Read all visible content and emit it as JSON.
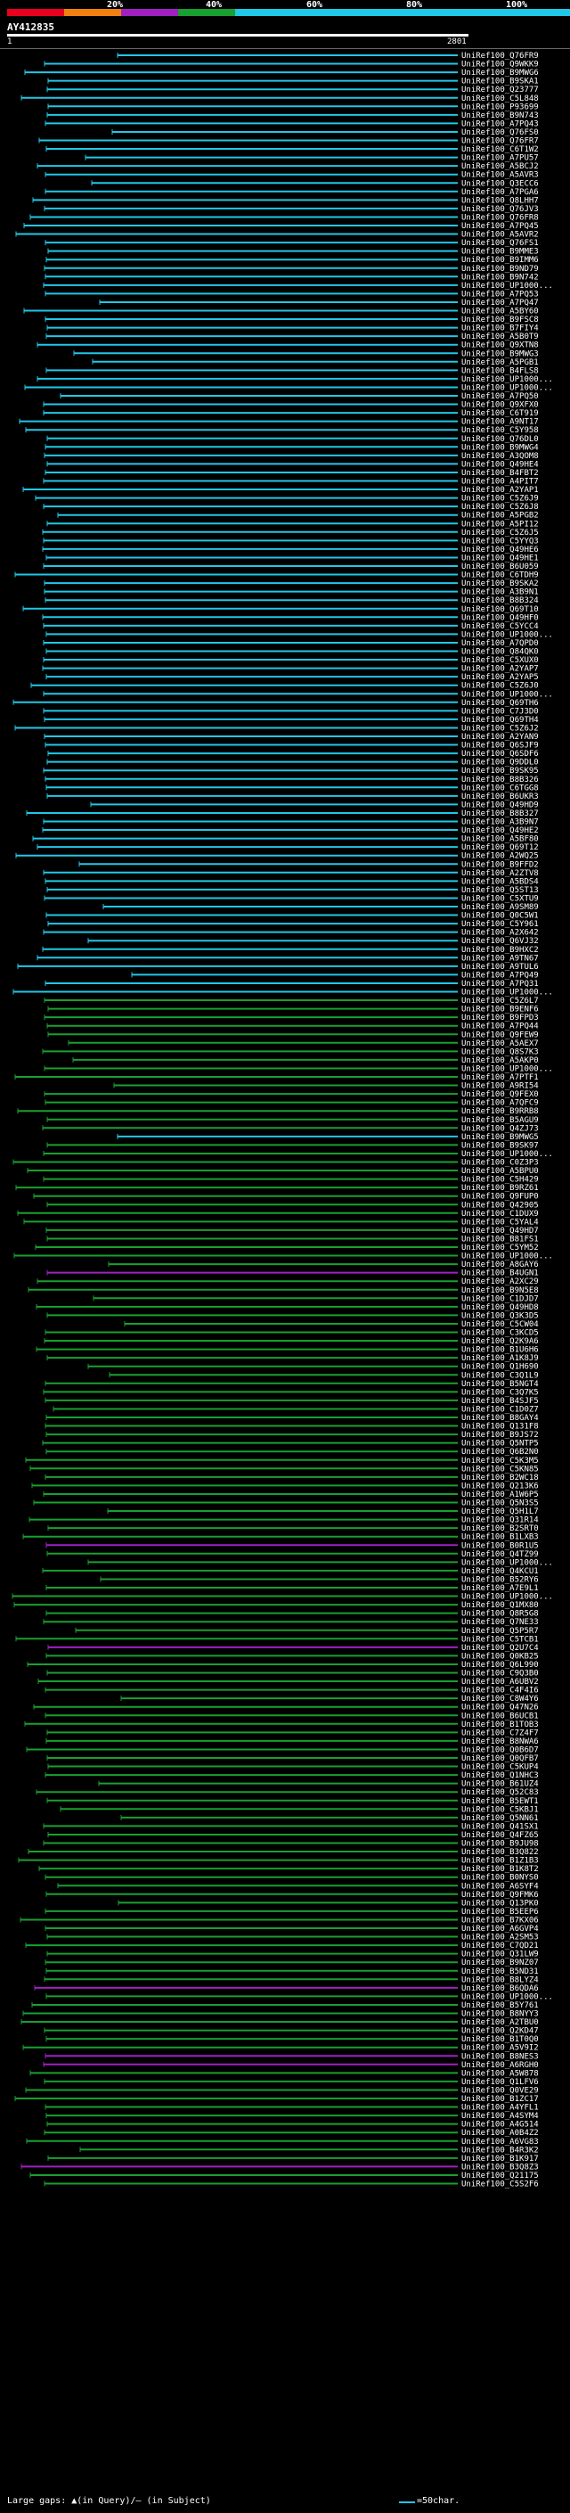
{
  "legend": {
    "pct_labels": [
      "20%",
      "40%",
      "60%",
      "80%",
      "100%"
    ],
    "colors": {
      "c20": "#e8001e",
      "c40": "#f08010",
      "c60": "#a020c0",
      "c80": "#18a030",
      "c100": "#20c8e8"
    }
  },
  "query": {
    "title": "AY412835",
    "start": "1",
    "end": "2801"
  },
  "hits": [
    {
      "label": "UniRef100_Q76FR9",
      "color": "cyan"
    },
    {
      "label": "UniRef100_Q9WKK9",
      "color": "cyan"
    },
    {
      "label": "UniRef100_B9MWG6",
      "color": "cyan"
    },
    {
      "label": "UniRef100_B9SKA1",
      "color": "cyan"
    },
    {
      "label": "UniRef100_Q23777",
      "color": "cyan"
    },
    {
      "label": "UniRef100_C5L848",
      "color": "cyan"
    },
    {
      "label": "UniRef100_P93699",
      "color": "cyan"
    },
    {
      "label": "UniRef100_B9N743",
      "color": "cyan"
    },
    {
      "label": "UniRef100_A7PQ43",
      "color": "cyan"
    },
    {
      "label": "UniRef100_Q76FS0",
      "color": "cyan"
    },
    {
      "label": "UniRef100_Q76FR7",
      "color": "cyan"
    },
    {
      "label": "UniRef100_C6T1W2",
      "color": "cyan"
    },
    {
      "label": "UniRef100_A7PU57",
      "color": "cyan"
    },
    {
      "label": "UniRef100_A5BCJ2",
      "color": "cyan"
    },
    {
      "label": "UniRef100_A5AVR3",
      "color": "cyan"
    },
    {
      "label": "UniRef100_Q3ECC6",
      "color": "cyan"
    },
    {
      "label": "UniRef100_A7PGA6",
      "color": "cyan"
    },
    {
      "label": "UniRef100_Q8LHH7",
      "color": "cyan"
    },
    {
      "label": "UniRef100_Q76JV3",
      "color": "cyan"
    },
    {
      "label": "UniRef100_Q76FR8",
      "color": "cyan"
    },
    {
      "label": "UniRef100_A7PQ45",
      "color": "cyan"
    },
    {
      "label": "UniRef100_A5AVR2",
      "color": "cyan"
    },
    {
      "label": "UniRef100_Q76FS1",
      "color": "cyan"
    },
    {
      "label": "UniRef100_B9MME3",
      "color": "cyan"
    },
    {
      "label": "UniRef100_B9IMM6",
      "color": "cyan"
    },
    {
      "label": "UniRef100_B9ND79",
      "color": "cyan"
    },
    {
      "label": "UniRef100_B9N742",
      "color": "cyan"
    },
    {
      "label": "UniRef100_UP1000...",
      "color": "cyan"
    },
    {
      "label": "UniRef100_A7PQ53",
      "color": "cyan"
    },
    {
      "label": "UniRef100_A7PQ47",
      "color": "cyan"
    },
    {
      "label": "UniRef100_A5BY60",
      "color": "cyan"
    },
    {
      "label": "UniRef100_B9FSC8",
      "color": "cyan"
    },
    {
      "label": "UniRef100_B7FIY4",
      "color": "cyan"
    },
    {
      "label": "UniRef100_A5B0T9",
      "color": "cyan"
    },
    {
      "label": "UniRef100_Q9XTN8",
      "color": "cyan"
    },
    {
      "label": "UniRef100_B9MWG3",
      "color": "cyan"
    },
    {
      "label": "UniRef100_A5PGB1",
      "color": "cyan"
    },
    {
      "label": "UniRef100_B4FLS8",
      "color": "cyan"
    },
    {
      "label": "UniRef100_UP1000...",
      "color": "cyan"
    },
    {
      "label": "UniRef100_UP1000...",
      "color": "cyan"
    },
    {
      "label": "UniRef100_A7PQ50",
      "color": "cyan"
    },
    {
      "label": "UniRef100_Q9XFX0",
      "color": "cyan"
    },
    {
      "label": "UniRef100_C6T919",
      "color": "cyan"
    },
    {
      "label": "UniRef100_A9NT17",
      "color": "cyan"
    },
    {
      "label": "UniRef100_C5Y958",
      "color": "cyan"
    },
    {
      "label": "UniRef100_Q76DL0",
      "color": "cyan"
    },
    {
      "label": "UniRef100_B9MWG4",
      "color": "cyan"
    },
    {
      "label": "UniRef100_A3QOM8",
      "color": "cyan"
    },
    {
      "label": "UniRef100_Q49HE4",
      "color": "cyan"
    },
    {
      "label": "UniRef100_B4FBT2",
      "color": "cyan"
    },
    {
      "label": "UniRef100_A4PIT7",
      "color": "cyan"
    },
    {
      "label": "UniRef100_A2YAP1",
      "color": "cyan"
    },
    {
      "label": "UniRef100_C5Z6J9",
      "color": "cyan"
    },
    {
      "label": "UniRef100_C5Z6J8",
      "color": "cyan"
    },
    {
      "label": "UniRef100_A5PGB2",
      "color": "cyan"
    },
    {
      "label": "UniRef100_A5PI12",
      "color": "cyan"
    },
    {
      "label": "UniRef100_C5Z6J5",
      "color": "cyan"
    },
    {
      "label": "UniRef100_C5YYQ3",
      "color": "cyan"
    },
    {
      "label": "UniRef100_Q49HE6",
      "color": "cyan"
    },
    {
      "label": "UniRef100_Q49HE1",
      "color": "cyan"
    },
    {
      "label": "UniRef100_B6U059",
      "color": "cyan"
    },
    {
      "label": "UniRef100_C6TDH9",
      "color": "cyan"
    },
    {
      "label": "UniRef100_B9SKA2",
      "color": "cyan"
    },
    {
      "label": "UniRef100_A3B9N1",
      "color": "cyan"
    },
    {
      "label": "UniRef100_B8B324",
      "color": "cyan"
    },
    {
      "label": "UniRef100_Q69T10",
      "color": "cyan"
    },
    {
      "label": "UniRef100_Q49HF0",
      "color": "cyan"
    },
    {
      "label": "UniRef100_C5YCC4",
      "color": "cyan"
    },
    {
      "label": "UniRef100_UP1000...",
      "color": "cyan"
    },
    {
      "label": "UniRef100_A7QPD0",
      "color": "cyan"
    },
    {
      "label": "UniRef100_Q84QK0",
      "color": "cyan"
    },
    {
      "label": "UniRef100_C5XUX0",
      "color": "cyan"
    },
    {
      "label": "UniRef100_A2YAP7",
      "color": "cyan"
    },
    {
      "label": "UniRef100_A2YAP5",
      "color": "cyan"
    },
    {
      "label": "UniRef100_C5Z6J0",
      "color": "cyan"
    },
    {
      "label": "UniRef100_UP1000...",
      "color": "cyan"
    },
    {
      "label": "UniRef100_Q69TH6",
      "color": "cyan"
    },
    {
      "label": "UniRef100_C7J3D0",
      "color": "cyan"
    },
    {
      "label": "UniRef100_Q69TH4",
      "color": "cyan"
    },
    {
      "label": "UniRef100_C5Z6J2",
      "color": "cyan"
    },
    {
      "label": "UniRef100_A2YAN9",
      "color": "cyan"
    },
    {
      "label": "UniRef100_Q6SJF9",
      "color": "cyan"
    },
    {
      "label": "UniRef100_Q6SDF6",
      "color": "cyan"
    },
    {
      "label": "UniRef100_Q9DDL0",
      "color": "cyan"
    },
    {
      "label": "UniRef100_B9SK95",
      "color": "cyan"
    },
    {
      "label": "UniRef100_B8B326",
      "color": "cyan"
    },
    {
      "label": "UniRef100_C6TGG8",
      "color": "cyan"
    },
    {
      "label": "UniRef100_B6UKR3",
      "color": "cyan"
    },
    {
      "label": "UniRef100_Q49HD9",
      "color": "cyan"
    },
    {
      "label": "UniRef100_B8B327",
      "color": "cyan"
    },
    {
      "label": "UniRef100_A3B9N7",
      "color": "cyan"
    },
    {
      "label": "UniRef100_Q49HE2",
      "color": "cyan"
    },
    {
      "label": "UniRef100_A5BF80",
      "color": "cyan"
    },
    {
      "label": "UniRef100_Q69T12",
      "color": "cyan"
    },
    {
      "label": "UniRef100_A2WQ25",
      "color": "cyan"
    },
    {
      "label": "UniRef100_B9FFD2",
      "color": "cyan"
    },
    {
      "label": "UniRef100_A2ZTV8",
      "color": "cyan"
    },
    {
      "label": "UniRef100_A5BDS4",
      "color": "cyan"
    },
    {
      "label": "UniRef100_Q5ST13",
      "color": "cyan"
    },
    {
      "label": "UniRef100_C5XTU9",
      "color": "cyan"
    },
    {
      "label": "UniRef100_A9SM89",
      "color": "cyan"
    },
    {
      "label": "UniRef100_Q0C5W1",
      "color": "cyan"
    },
    {
      "label": "UniRef100_C5Y961",
      "color": "cyan"
    },
    {
      "label": "UniRef100_A2X642",
      "color": "cyan"
    },
    {
      "label": "UniRef100_Q6VJ32",
      "color": "cyan"
    },
    {
      "label": "UniRef100_B9HXC2",
      "color": "cyan"
    },
    {
      "label": "UniRef100_A9TN67",
      "color": "cyan"
    },
    {
      "label": "UniRef100_A9TUL6",
      "color": "cyan"
    },
    {
      "label": "UniRef100_A7PQ49",
      "color": "cyan"
    },
    {
      "label": "UniRef100_A7PQ31",
      "color": "cyan"
    },
    {
      "label": "UniRef100_UP1000...",
      "color": "cyan"
    },
    {
      "label": "UniRef100_C5Z6L7",
      "color": "green"
    },
    {
      "label": "UniRef100_B9ENF6",
      "color": "green"
    },
    {
      "label": "UniRef100_B9FPD3",
      "color": "green"
    },
    {
      "label": "UniRef100_A7PQ44",
      "color": "green"
    },
    {
      "label": "UniRef100_Q9FEW9",
      "color": "green"
    },
    {
      "label": "UniRef100_A5AEX7",
      "color": "green"
    },
    {
      "label": "UniRef100_Q8S7K3",
      "color": "green"
    },
    {
      "label": "UniRef100_A5AKP0",
      "color": "green"
    },
    {
      "label": "UniRef100_UP1000...",
      "color": "green"
    },
    {
      "label": "UniRef100_A7PTF1",
      "color": "green"
    },
    {
      "label": "UniRef100_A9RI54",
      "color": "green"
    },
    {
      "label": "UniRef100_Q9FEX0",
      "color": "green"
    },
    {
      "label": "UniRef100_A7QFC9",
      "color": "green"
    },
    {
      "label": "UniRef100_B9RRB8",
      "color": "green"
    },
    {
      "label": "UniRef100_B5AGU9",
      "color": "green"
    },
    {
      "label": "UniRef100_Q4ZJ73",
      "color": "green"
    },
    {
      "label": "UniRef100_B9MWG5",
      "color": "cyan"
    },
    {
      "label": "UniRef100_B9SK97",
      "color": "green"
    },
    {
      "label": "UniRef100_UP1000...",
      "color": "green"
    },
    {
      "label": "UniRef100_C0Z3P3",
      "color": "green"
    },
    {
      "label": "UniRef100_A5BPU0",
      "color": "green"
    },
    {
      "label": "UniRef100_C5H429",
      "color": "green"
    },
    {
      "label": "UniRef100_B9RZ61",
      "color": "green"
    },
    {
      "label": "UniRef100_Q9FUP0",
      "color": "green"
    },
    {
      "label": "UniRef100_Q42905",
      "color": "green"
    },
    {
      "label": "UniRef100_C1DUX9",
      "color": "green"
    },
    {
      "label": "UniRef100_C5YAL4",
      "color": "green"
    },
    {
      "label": "UniRef100_Q49HD7",
      "color": "green"
    },
    {
      "label": "UniRef100_B81FS1",
      "color": "green"
    },
    {
      "label": "UniRef100_C5YM52",
      "color": "green"
    },
    {
      "label": "UniRef100_UP1000...",
      "color": "green"
    },
    {
      "label": "UniRef100_A8GAY6",
      "color": "green"
    },
    {
      "label": "UniRef100_B4UGN1",
      "color": "purple"
    },
    {
      "label": "UniRef100_A2XC29",
      "color": "green"
    },
    {
      "label": "UniRef100_B9N5E8",
      "color": "green"
    },
    {
      "label": "UniRef100_C1DJD7",
      "color": "green"
    },
    {
      "label": "UniRef100_Q49HD8",
      "color": "green"
    },
    {
      "label": "UniRef100_Q3K3D5",
      "color": "green"
    },
    {
      "label": "UniRef100_C5CW04",
      "color": "green"
    },
    {
      "label": "UniRef100_C3KCD5",
      "color": "green"
    },
    {
      "label": "UniRef100_Q2K9A6",
      "color": "green"
    },
    {
      "label": "UniRef100_B1U6H6",
      "color": "green"
    },
    {
      "label": "UniRef100_A1K8J9",
      "color": "green"
    },
    {
      "label": "UniRef100_Q1H690",
      "color": "green"
    },
    {
      "label": "UniRef100_C3Q1L9",
      "color": "green"
    },
    {
      "label": "UniRef100_B5NGT4",
      "color": "green"
    },
    {
      "label": "UniRef100_C3Q7K5",
      "color": "green"
    },
    {
      "label": "UniRef100_B4SJF5",
      "color": "green"
    },
    {
      "label": "UniRef100_C1D0Z7",
      "color": "green"
    },
    {
      "label": "UniRef100_B8GAY4",
      "color": "green"
    },
    {
      "label": "UniRef100_Q131F8",
      "color": "green"
    },
    {
      "label": "UniRef100_B9JS72",
      "color": "green"
    },
    {
      "label": "UniRef100_Q5NTP5",
      "color": "green"
    },
    {
      "label": "UniRef100_Q6B2N0",
      "color": "green"
    },
    {
      "label": "UniRef100_C5K3M5",
      "color": "green"
    },
    {
      "label": "UniRef100_C5KN85",
      "color": "green"
    },
    {
      "label": "UniRef100_B2WC18",
      "color": "green"
    },
    {
      "label": "UniRef100_Q213K6",
      "color": "green"
    },
    {
      "label": "UniRef100_A1W6P5",
      "color": "green"
    },
    {
      "label": "UniRef100_Q5N3S5",
      "color": "green"
    },
    {
      "label": "UniRef100_Q5H1L7",
      "color": "green"
    },
    {
      "label": "UniRef100_Q31R14",
      "color": "green"
    },
    {
      "label": "UniRef100_B2SRT0",
      "color": "green"
    },
    {
      "label": "UniRef100_B1LXB3",
      "color": "green"
    },
    {
      "label": "UniRef100_B0R1U5",
      "color": "purple"
    },
    {
      "label": "UniRef100_Q4TZ99",
      "color": "green"
    },
    {
      "label": "UniRef100_UP1000...",
      "color": "green"
    },
    {
      "label": "UniRef100_Q4KCU1",
      "color": "green"
    },
    {
      "label": "UniRef100_B52RY6",
      "color": "green"
    },
    {
      "label": "UniRef100_A7E9L1",
      "color": "green"
    },
    {
      "label": "UniRef100_UP1000...",
      "color": "green"
    },
    {
      "label": "UniRef100_Q1MX80",
      "color": "green"
    },
    {
      "label": "UniRef100_Q8R5G8",
      "color": "green"
    },
    {
      "label": "UniRef100_Q7NE33",
      "color": "green"
    },
    {
      "label": "UniRef100_Q5P5R7",
      "color": "green"
    },
    {
      "label": "UniRef100_C5TCB1",
      "color": "green"
    },
    {
      "label": "UniRef100_Q2U7C4",
      "color": "purple"
    },
    {
      "label": "UniRef100_Q0KB25",
      "color": "green"
    },
    {
      "label": "UniRef100_Q6L990",
      "color": "green"
    },
    {
      "label": "UniRef100_C9Q3B0",
      "color": "green"
    },
    {
      "label": "UniRef100_A6UBV2",
      "color": "green"
    },
    {
      "label": "UniRef100_C4F4I6",
      "color": "green"
    },
    {
      "label": "UniRef100_C8W4Y6",
      "color": "green"
    },
    {
      "label": "UniRef100_Q47N26",
      "color": "green"
    },
    {
      "label": "UniRef100_B6UCB1",
      "color": "green"
    },
    {
      "label": "UniRef100_B1TOB3",
      "color": "green"
    },
    {
      "label": "UniRef100_C7Z4F7",
      "color": "green"
    },
    {
      "label": "UniRef100_B8NWA6",
      "color": "green"
    },
    {
      "label": "UniRef100_Q0B6D7",
      "color": "green"
    },
    {
      "label": "UniRef100_Q0QFB7",
      "color": "green"
    },
    {
      "label": "UniRef100_C5KUP4",
      "color": "green"
    },
    {
      "label": "UniRef100_Q1NHC3",
      "color": "green"
    },
    {
      "label": "UniRef100_B61UZ4",
      "color": "green"
    },
    {
      "label": "UniRef100_Q52C83",
      "color": "green"
    },
    {
      "label": "UniRef100_B5EWT1",
      "color": "green"
    },
    {
      "label": "UniRef100_C5KBJ1",
      "color": "green"
    },
    {
      "label": "UniRef100_Q5NN61",
      "color": "green"
    },
    {
      "label": "UniRef100_Q41SX1",
      "color": "green"
    },
    {
      "label": "UniRef100_Q4FZ65",
      "color": "green"
    },
    {
      "label": "UniRef100_B9JU98",
      "color": "green"
    },
    {
      "label": "UniRef100_B3Q822",
      "color": "green"
    },
    {
      "label": "UniRef100_B1Z1B3",
      "color": "green"
    },
    {
      "label": "UniRef100_B1K8T2",
      "color": "green"
    },
    {
      "label": "UniRef100_B0NYS0",
      "color": "green"
    },
    {
      "label": "UniRef100_A6SYF4",
      "color": "green"
    },
    {
      "label": "UniRef100_Q9FMK6",
      "color": "green"
    },
    {
      "label": "UniRef100_Q13PK0",
      "color": "green"
    },
    {
      "label": "UniRef100_B5EEP6",
      "color": "green"
    },
    {
      "label": "UniRef100_B7KX06",
      "color": "green"
    },
    {
      "label": "UniRef100_A6GVP4",
      "color": "green"
    },
    {
      "label": "UniRef100_A2SM53",
      "color": "green"
    },
    {
      "label": "UniRef100_C7QD21",
      "color": "green"
    },
    {
      "label": "UniRef100_Q31LW9",
      "color": "green"
    },
    {
      "label": "UniRef100_B9NZ07",
      "color": "green"
    },
    {
      "label": "UniRef100_B5ND31",
      "color": "green"
    },
    {
      "label": "UniRef100_B8LYZ4",
      "color": "green"
    },
    {
      "label": "UniRef100_B6QDA6",
      "color": "purple"
    },
    {
      "label": "UniRef100_UP1000...",
      "color": "green"
    },
    {
      "label": "UniRef100_B5Y761",
      "color": "green"
    },
    {
      "label": "UniRef100_B8NYY3",
      "color": "green"
    },
    {
      "label": "UniRef100_A2TBU0",
      "color": "green"
    },
    {
      "label": "UniRef100_Q2KD47",
      "color": "green"
    },
    {
      "label": "UniRef100_B1T0Q0",
      "color": "green"
    },
    {
      "label": "UniRef100_A5V9I2",
      "color": "green"
    },
    {
      "label": "UniRef100_B8NES3",
      "color": "purple"
    },
    {
      "label": "UniRef100_A6RGH0",
      "color": "purple"
    },
    {
      "label": "UniRef100_A5W878",
      "color": "green"
    },
    {
      "label": "UniRef100_Q1LFV6",
      "color": "green"
    },
    {
      "label": "UniRef100_Q0VE29",
      "color": "green"
    },
    {
      "label": "UniRef100_B1ZC17",
      "color": "green"
    },
    {
      "label": "UniRef100_A4YFL1",
      "color": "green"
    },
    {
      "label": "UniRef100_A4SYM4",
      "color": "green"
    },
    {
      "label": "UniRef100_A4G514",
      "color": "green"
    },
    {
      "label": "UniRef100_A0B4Z2",
      "color": "green"
    },
    {
      "label": "UniRef100_A6VG83",
      "color": "green"
    },
    {
      "label": "UniRef100_B4R3K2",
      "color": "green"
    },
    {
      "label": "UniRef100_B1K917",
      "color": "green"
    },
    {
      "label": "UniRef100_B3Q8Z3",
      "color": "purple"
    },
    {
      "label": "UniRef100_Q21175",
      "color": "green"
    },
    {
      "label": "UniRef100_C5S2F6",
      "color": "green"
    }
  ],
  "footer": {
    "large_gaps_note": "Large gaps: ▲(in Query)/— (in Subject)",
    "scale_text": "=50char."
  }
}
